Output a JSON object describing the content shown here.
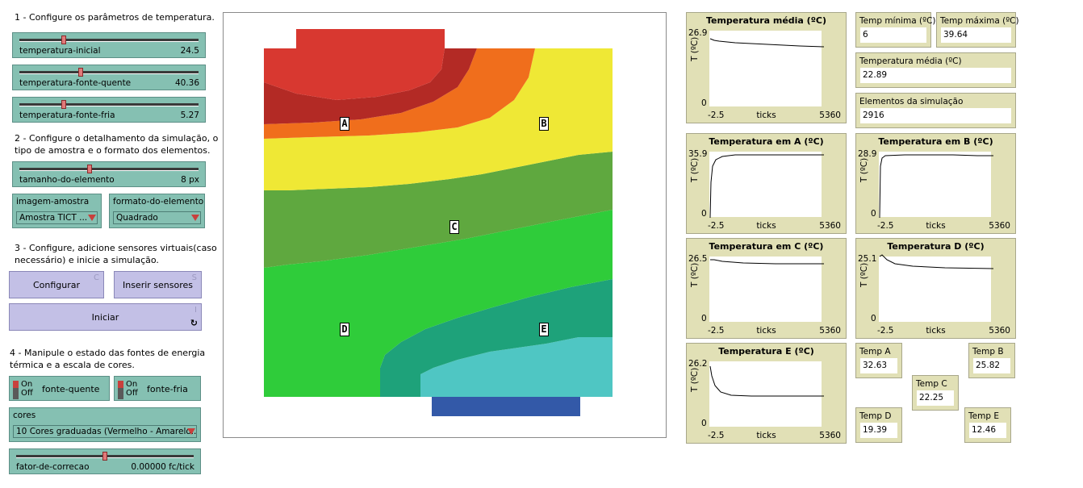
{
  "steps": {
    "step1": "1 - Configure os parâmetros de temperatura.",
    "step2_line1": "2 - Configure o detalhamento da simulação, o",
    "step2_line2": "tipo de amostra e o formato dos elementos.",
    "step3_line1": "3 - Configure, adicione sensores virtuais(caso",
    "step3_line2": "necessário) e inicie a simulação.",
    "step4_line1": "4 - Manipule o estado das fontes de energia",
    "step4_line2": "térmica e a escala de cores."
  },
  "sliders": {
    "temperatura_inicial": {
      "name": "temperatura-inicial",
      "value": "24.5",
      "fraction": 0.24
    },
    "temperatura_fonte_quente": {
      "name": "temperatura-fonte-quente",
      "value": "40.36",
      "fraction": 0.34
    },
    "temperatura_fonte_fria": {
      "name": "temperatura-fonte-fria",
      "value": "5.27",
      "fraction": 0.24
    },
    "tamanho_do_elemento": {
      "name": "tamanho-do-elemento",
      "value": "8 px",
      "fraction": 0.39
    },
    "fator_de_correcao": {
      "name": "fator-de-correcao",
      "value": "0.00000 fc/tick",
      "fraction": 0.5
    }
  },
  "choosers": {
    "imagem_amostra": {
      "name": "imagem-amostra",
      "value": "Amostra TICT ..."
    },
    "formato_do_elemento": {
      "name": "formato-do-elemento",
      "value": "Quadrado"
    },
    "cores": {
      "name": "cores",
      "value": "10 Cores graduadas (Vermelho - Amarelo..."
    }
  },
  "buttons": {
    "configurar": {
      "label": "Configurar",
      "key": "C"
    },
    "inserir_sensores": {
      "label": "Inserir sensores",
      "key": "S"
    },
    "iniciar": {
      "label": "Iniciar",
      "key": "I",
      "forever": "↻"
    }
  },
  "switches": {
    "on_label": "On",
    "off_label": "Off",
    "fonte_quente": "fonte-quente",
    "fonte_fria": "fonte-fria"
  },
  "view": {
    "sensors": [
      "A",
      "B",
      "C",
      "D",
      "E"
    ],
    "colors": {
      "red": "#d83830",
      "dark_red": "#b32a25",
      "orange": "#f06e1c",
      "yellow": "#efe835",
      "yellow_green": "#5fa83f",
      "green": "#2fcc3a",
      "teal": "#1ea27a",
      "cyan": "#4fc6c3",
      "blue": "#2d8cc6",
      "dark_blue": "#3359a8"
    }
  },
  "plots": {
    "media": {
      "title": "Temperatura média (ºC)",
      "ymax": "26.9",
      "ymin": "0",
      "ylabel": "T (ºC)",
      "xmin": "-2.5",
      "xlabel": "ticks",
      "xmax": "5360"
    },
    "a": {
      "title": "Temperatura em A (ºC)",
      "ymax": "35.9",
      "ymin": "0",
      "ylabel": "T (ºC)",
      "xmin": "-2.5",
      "xlabel": "ticks",
      "xmax": "5360"
    },
    "b": {
      "title": "Temperatura em B (ºC)",
      "ymax": "28.9",
      "ymin": "0",
      "ylabel": "T (ºC)",
      "xmin": "-2.5",
      "xlabel": "ticks",
      "xmax": "5360"
    },
    "c": {
      "title": "Temperatura em C (ºC)",
      "ymax": "26.5",
      "ymin": "0",
      "ylabel": "T (ºC)",
      "xmin": "-2.5",
      "xlabel": "ticks",
      "xmax": "5360"
    },
    "d": {
      "title": "Temperatura D (ºC)",
      "ymax": "25.1",
      "ymin": "0",
      "ylabel": "T (ºC)",
      "xmin": "-2.5",
      "xlabel": "ticks",
      "xmax": "5360"
    },
    "e": {
      "title": "Temperatura E (ºC)",
      "ymax": "26.2",
      "ymin": "0",
      "ylabel": "T (ºC)",
      "xmin": "-2.5",
      "xlabel": "ticks",
      "xmax": "5360"
    }
  },
  "monitors": {
    "temp_minima": {
      "name": "Temp mínima (ºC)",
      "value": "6"
    },
    "temp_maxima": {
      "name": "Temp máxima (ºC)",
      "value": "39.64"
    },
    "temp_media": {
      "name": "Temperatura média (ºC)",
      "value": "22.89"
    },
    "elementos": {
      "name": "Elementos da simulação",
      "value": "2916"
    },
    "temp_a": {
      "name": "Temp A",
      "value": "32.63"
    },
    "temp_b": {
      "name": "Temp B",
      "value": "25.82"
    },
    "temp_c": {
      "name": "Temp C",
      "value": "22.25"
    },
    "temp_d": {
      "name": "Temp D",
      "value": "19.39"
    },
    "temp_e": {
      "name": "Temp E",
      "value": "12.46"
    }
  }
}
